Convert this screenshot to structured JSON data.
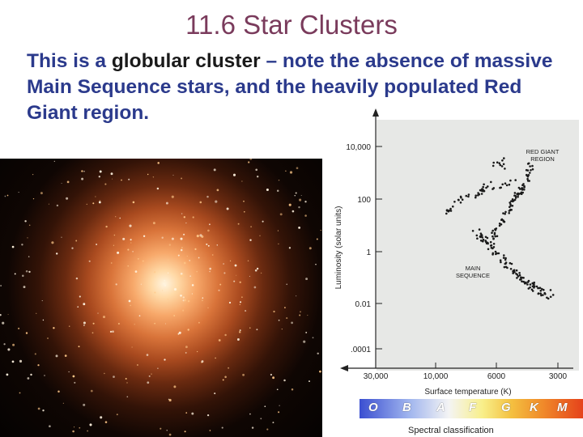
{
  "slide": {
    "title": "11.6 Star Clusters",
    "text_before": "This is a ",
    "text_emphasis": "globular cluster",
    "text_after": " – note the absence of massive Main Sequence stars, and the heavily populated Red Giant region."
  },
  "hr_diagram": {
    "ylabel": "Luminosity (solar units)",
    "y_ticks": [
      "10,000",
      "100",
      "1",
      "0.01",
      ".0001"
    ],
    "xlabel": "Surface temperature (K)",
    "x_ticks": [
      "30,000",
      "10,000",
      "6000",
      "3000"
    ],
    "region_red_giant": [
      "RED GIANT",
      "REGION"
    ],
    "region_main_sequence": [
      "MAIN",
      "SEQUENCE"
    ],
    "spectral_classes": [
      "O",
      "B",
      "A",
      "F",
      "G",
      "K",
      "M"
    ],
    "spectral_caption": "Spectral classification"
  },
  "colors": {
    "title": "#7a3b5c",
    "body_text": "#2b3a8c",
    "emphasis": "#1a1a1a"
  }
}
